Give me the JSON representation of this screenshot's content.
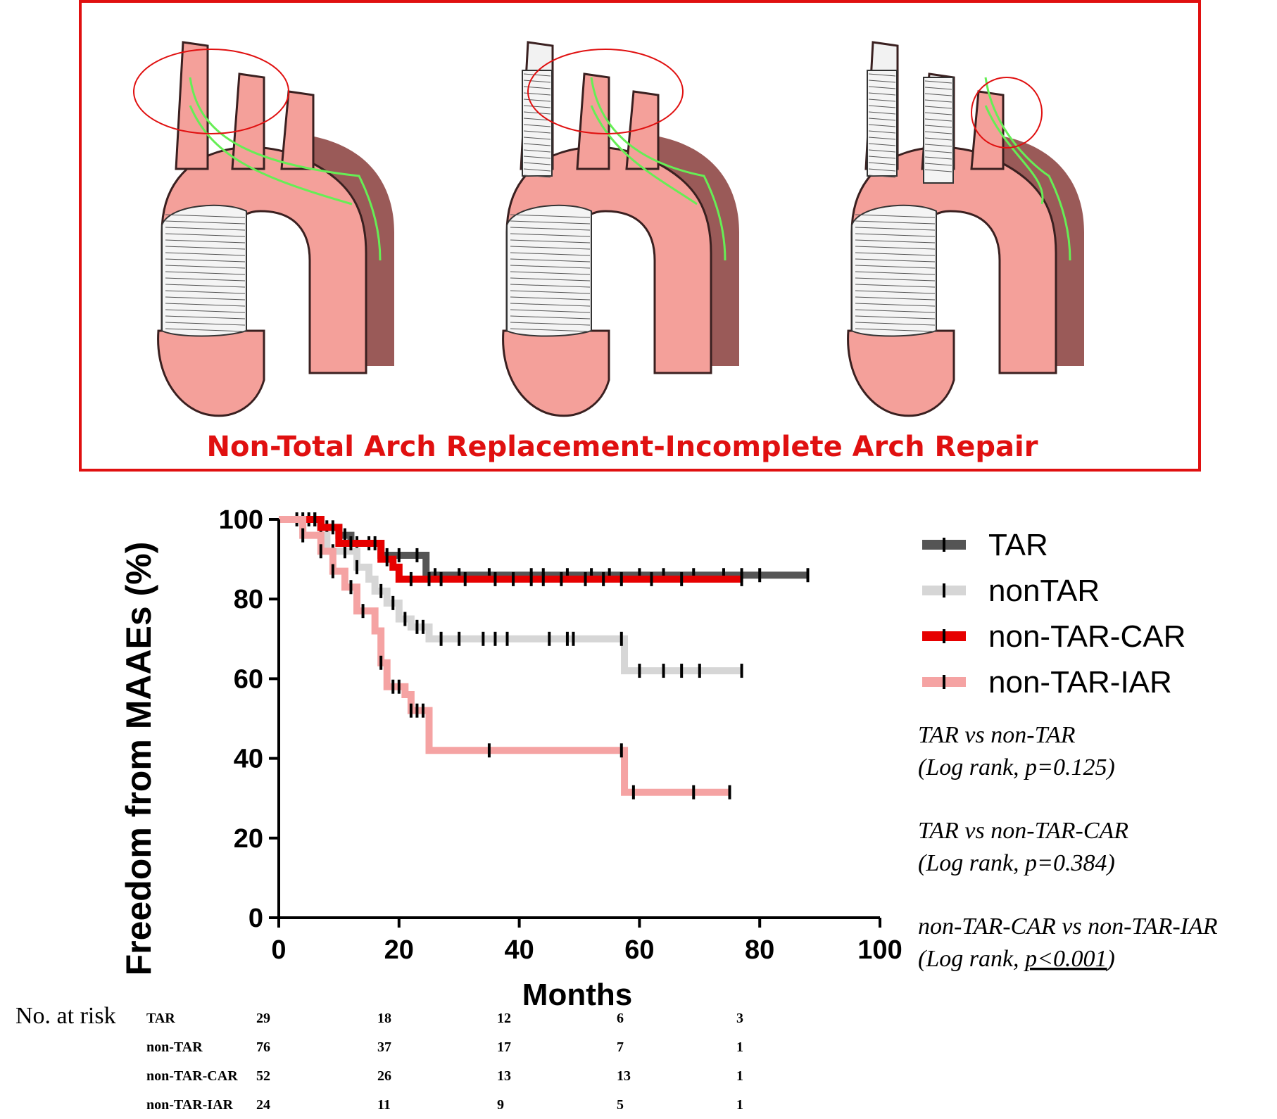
{
  "illustration": {
    "caption": "Non-Total Arch Replacement-Incomplete Arch Repair",
    "border_color": "#e01010",
    "caption_color": "#e01010",
    "aorta_color": "#f4a09a",
    "false_lumen_color": "#9a5a58",
    "flow_arrow_color": "#66ee55",
    "highlight_circle_color": "#e01010"
  },
  "chart_data": {
    "type": "line",
    "subtype": "kaplan-meier",
    "title": "",
    "xlabel": "Months",
    "ylabel": "Freedom from MAAEs (%)",
    "xlim": [
      0,
      100
    ],
    "ylim": [
      0,
      100
    ],
    "xticks": [
      0,
      20,
      40,
      60,
      80,
      100
    ],
    "yticks": [
      0,
      20,
      40,
      60,
      80,
      100
    ],
    "grid": false,
    "legend_position": "right",
    "series": [
      {
        "name": "TAR",
        "color": "#555555",
        "points": [
          [
            0,
            100
          ],
          [
            4,
            100
          ],
          [
            6,
            100
          ],
          [
            7,
            98
          ],
          [
            10,
            96
          ],
          [
            12,
            94
          ],
          [
            16,
            94
          ],
          [
            17,
            91
          ],
          [
            24,
            91
          ],
          [
            24.5,
            86
          ],
          [
            88,
            86
          ]
        ],
        "censor": [
          3,
          4,
          5,
          6,
          8,
          11,
          13,
          15,
          18,
          20,
          23,
          26,
          30,
          35,
          42,
          44,
          48,
          52,
          55,
          60,
          64,
          69,
          74,
          77,
          80,
          88
        ]
      },
      {
        "name": "nonTAR",
        "color": "#d6d6d6",
        "points": [
          [
            0,
            100
          ],
          [
            3,
            100
          ],
          [
            4,
            96
          ],
          [
            8,
            92
          ],
          [
            13,
            88
          ],
          [
            15,
            85
          ],
          [
            16,
            82
          ],
          [
            18,
            79
          ],
          [
            20,
            75
          ],
          [
            22,
            73
          ],
          [
            25,
            70
          ],
          [
            57,
            70
          ],
          [
            57.5,
            62
          ],
          [
            77,
            62
          ]
        ],
        "censor": [
          7,
          9,
          11,
          13,
          17,
          19,
          21,
          23,
          24,
          27,
          30,
          34,
          36,
          38,
          45,
          48,
          49,
          57,
          60,
          64,
          67,
          70,
          77
        ]
      },
      {
        "name": "non-TAR-CAR",
        "color": "#e60000",
        "points": [
          [
            0,
            100
          ],
          [
            5,
            100
          ],
          [
            7,
            98
          ],
          [
            10,
            94
          ],
          [
            14,
            94
          ],
          [
            17,
            90
          ],
          [
            19,
            88
          ],
          [
            20,
            85
          ],
          [
            77,
            85
          ]
        ],
        "censor": [
          6,
          9,
          12,
          16,
          18,
          22,
          25,
          27,
          31,
          36,
          39,
          42,
          44,
          47,
          51,
          54,
          57,
          62,
          67,
          77
        ]
      },
      {
        "name": "non-TAR-IAR",
        "color": "#f5a3a3",
        "points": [
          [
            0,
            100
          ],
          [
            3,
            100
          ],
          [
            4,
            96
          ],
          [
            7,
            92
          ],
          [
            9,
            87
          ],
          [
            11,
            83
          ],
          [
            13,
            77
          ],
          [
            16,
            72
          ],
          [
            17,
            64
          ],
          [
            18,
            58
          ],
          [
            21,
            56
          ],
          [
            22,
            52
          ],
          [
            25,
            42
          ],
          [
            57,
            42
          ],
          [
            57.5,
            31.5
          ],
          [
            75,
            31.5
          ]
        ],
        "censor": [
          4,
          7,
          9,
          12,
          14,
          17,
          19,
          20,
          22,
          23,
          24,
          35,
          57,
          59,
          69,
          75
        ]
      }
    ],
    "annotations": [
      {
        "line1": "TAR vs non-TAR",
        "line2": "(Log rank, p=0.125)"
      },
      {
        "line1": "TAR vs non-TAR-CAR",
        "line2": "(Log rank, p=0.384)"
      },
      {
        "line1": "non-TAR-CAR vs non-TAR-IAR",
        "line2_prefix": "(Log rank, ",
        "line2_underlined": "p<0.001",
        "line2_suffix": ")"
      }
    ],
    "risk_table": {
      "label": "No. at risk",
      "rows": [
        {
          "name": "TAR",
          "values": [
            "29",
            "18",
            "12",
            "6",
            "3"
          ]
        },
        {
          "name": "non-TAR",
          "values": [
            "76",
            "37",
            "17",
            "7",
            "1"
          ]
        },
        {
          "name": "non-TAR-CAR",
          "values": [
            "52",
            "26",
            "13",
            "13",
            "1"
          ]
        },
        {
          "name": "non-TAR-IAR",
          "values": [
            "24",
            "11",
            "9",
            "5",
            "1"
          ]
        }
      ]
    }
  }
}
